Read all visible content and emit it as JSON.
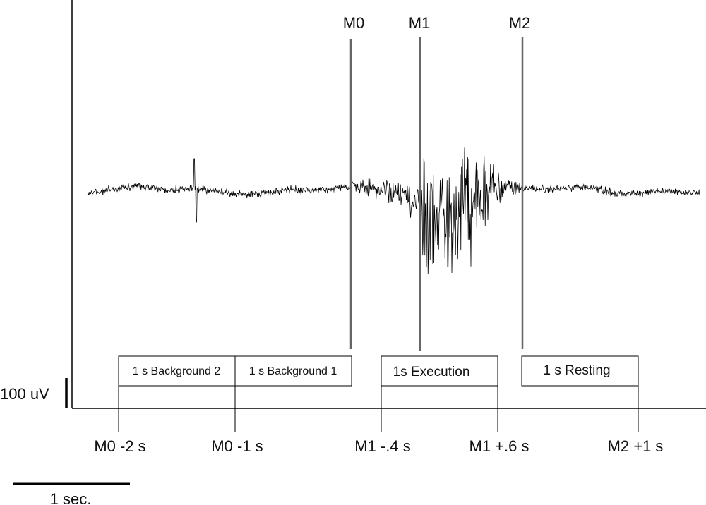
{
  "markers": [
    {
      "id": "M0",
      "label": "M0"
    },
    {
      "id": "M1",
      "label": "M1"
    },
    {
      "id": "M2",
      "label": "M2"
    }
  ],
  "windows": [
    {
      "id": "background2",
      "label": "1 s Background 2"
    },
    {
      "id": "background1",
      "label": "1 s Background 1"
    },
    {
      "id": "execution",
      "label": "1s Execution"
    },
    {
      "id": "resting",
      "label": "1 s Resting"
    }
  ],
  "ticks": [
    {
      "id": "m0-minus-2",
      "label": "M0 -2 s"
    },
    {
      "id": "m0-minus-1",
      "label": "M0 -1 s"
    },
    {
      "id": "m1-minus-04",
      "label": "M1 -.4 s"
    },
    {
      "id": "m1-plus-06",
      "label": "M1 +.6 s"
    },
    {
      "id": "m2-plus-1",
      "label": "M2 +1 s"
    }
  ],
  "amplitude_scale": {
    "label": "100 uV"
  },
  "time_scale": {
    "label": "1 sec."
  }
}
